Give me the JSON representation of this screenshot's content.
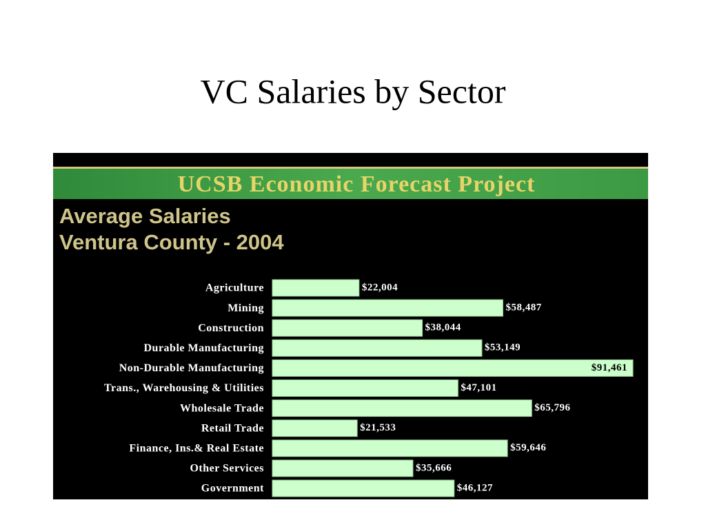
{
  "slide_title": "VC Salaries by Sector",
  "chart_data": {
    "type": "hbar",
    "banner": "UCSB Economic Forecast Project",
    "title": "Average Salaries",
    "subtitle": "Ventura County - 2004",
    "categories": [
      "Agriculture",
      "Mining",
      "Construction",
      "Durable Manufacturing",
      "Non-Durable Manufacturing",
      "Trans., Warehousing & Utilities",
      "Wholesale Trade",
      "Retail Trade",
      "Finance, Ins.& Real Estate",
      "Other Services",
      "Government"
    ],
    "values": [
      22004,
      58487,
      38044,
      53149,
      91461,
      47101,
      65796,
      21533,
      59646,
      35666,
      46127
    ],
    "value_labels": [
      "$22,004",
      "$58,487",
      "$38,044",
      "$53,149",
      "$91,461",
      "$47,101",
      "$65,796",
      "$21,533",
      "$59,646",
      "$35,666",
      "$46,127"
    ],
    "color": "#ccffcc"
  }
}
